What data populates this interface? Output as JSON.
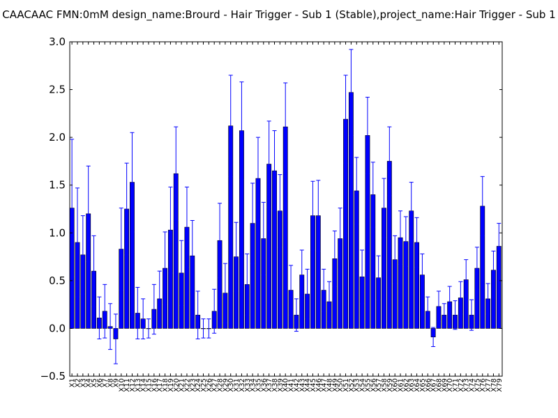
{
  "chart_data": {
    "type": "bar",
    "title": "CAACAAC  FMN:0mM  design_name:Brourd - Hair Trigger - Sub 1 (Stable),project_name:Hair Trigger - Sub 1",
    "xlabel": "",
    "ylabel": "",
    "ylim": [
      -0.5,
      3.0
    ],
    "yticks": [
      "−0.5",
      "0.0",
      "0.5",
      "1.0",
      "1.5",
      "2.0",
      "2.5",
      "3.0"
    ],
    "ytick_values": [
      -0.5,
      0.0,
      0.5,
      1.0,
      1.5,
      2.0,
      2.5,
      3.0
    ],
    "grid": false,
    "bar_color": "#0000ff",
    "error_color": "#0000ff",
    "categories": [
      "X1",
      "X2",
      "X3",
      "X4",
      "X5",
      "X6",
      "X7",
      "X8",
      "X9",
      "X10",
      "X11",
      "X12",
      "X13",
      "X14",
      "X15",
      "X16",
      "X17",
      "X18",
      "X19",
      "X20",
      "X21",
      "X22",
      "X23",
      "X24",
      "X25",
      "X26",
      "X27",
      "X28",
      "X29",
      "X30",
      "X31",
      "X32",
      "X33",
      "X34",
      "X35",
      "X36",
      "X37",
      "X38",
      "X39",
      "X40",
      "X41",
      "X42",
      "X43",
      "X44",
      "X45",
      "X46",
      "X47",
      "X48",
      "X49",
      "X50",
      "X51",
      "X52",
      "X53",
      "X54",
      "X55",
      "X56",
      "X57",
      "X58",
      "X59",
      "X60",
      "X61",
      "X62",
      "X63",
      "X64",
      "X65",
      "X66",
      "X67",
      "X68",
      "X69",
      "X70",
      "X71",
      "X72",
      "X73",
      "X74",
      "X75",
      "X76",
      "X77",
      "X78",
      "X79"
    ],
    "values": [
      1.26,
      0.9,
      0.77,
      1.2,
      0.6,
      0.11,
      0.18,
      0.02,
      -0.11,
      0.83,
      1.25,
      1.53,
      0.16,
      0.1,
      0.0,
      0.2,
      0.31,
      0.63,
      1.03,
      1.62,
      0.58,
      1.06,
      0.76,
      0.14,
      0.0,
      0.0,
      0.18,
      0.92,
      0.37,
      2.12,
      0.75,
      2.07,
      0.46,
      1.1,
      1.57,
      0.94,
      1.72,
      1.65,
      1.23,
      2.11,
      0.4,
      0.14,
      0.56,
      0.36,
      1.18,
      1.18,
      0.4,
      0.28,
      0.73,
      0.94,
      2.19,
      2.47,
      1.44,
      0.54,
      2.02,
      1.4,
      0.53,
      1.26,
      1.75,
      0.72,
      0.95,
      0.91,
      1.23,
      0.9,
      0.56,
      0.18,
      -0.09,
      0.23,
      0.14,
      0.28,
      0.14,
      0.32,
      0.51,
      0.14,
      0.63,
      1.28,
      0.31,
      0.61,
      0.86
    ],
    "errors": [
      0.72,
      0.57,
      0.41,
      0.5,
      0.37,
      0.22,
      0.28,
      0.24,
      0.26,
      0.43,
      0.48,
      0.52,
      0.27,
      0.21,
      0.1,
      0.26,
      0.29,
      0.38,
      0.45,
      0.49,
      0.34,
      0.42,
      0.37,
      0.25,
      0.1,
      0.1,
      0.23,
      0.39,
      0.31,
      0.53,
      0.36,
      0.51,
      0.32,
      0.42,
      0.43,
      0.38,
      0.45,
      0.42,
      0.38,
      0.46,
      0.26,
      0.17,
      0.26,
      0.26,
      0.36,
      0.37,
      0.22,
      0.21,
      0.29,
      0.32,
      0.46,
      0.45,
      0.35,
      0.28,
      0.4,
      0.34,
      0.23,
      0.31,
      0.36,
      0.25,
      0.28,
      0.26,
      0.3,
      0.26,
      0.22,
      0.15,
      0.1,
      0.16,
      0.12,
      0.16,
      0.15,
      0.17,
      0.21,
      0.16,
      0.22,
      0.31,
      0.16,
      0.2,
      0.24
    ]
  }
}
